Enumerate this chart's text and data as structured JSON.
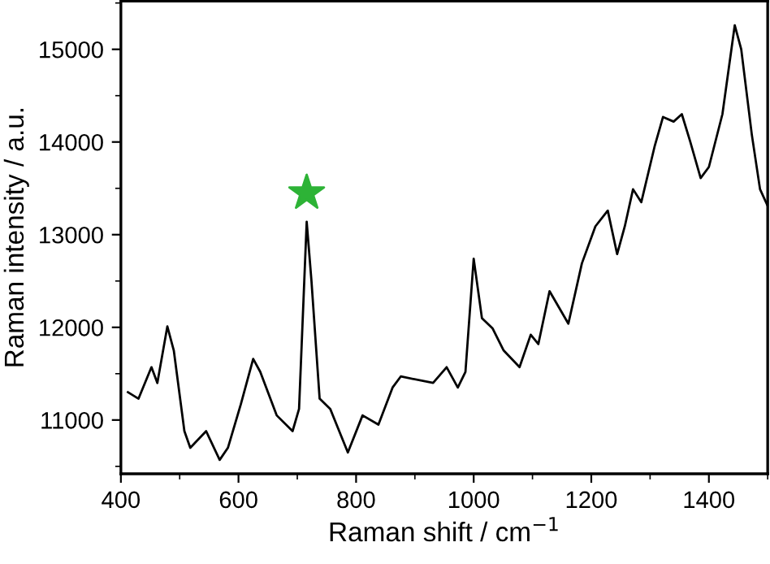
{
  "chart_data": {
    "type": "line",
    "xlabel": "Raman shift / cm$^{−1}$",
    "ylabel": "Raman intensity / a.u.",
    "xlim": [
      400,
      1500
    ],
    "ylim": [
      10420,
      15520
    ],
    "xticks": [
      400,
      600,
      800,
      1000,
      1200,
      1400
    ],
    "yticks": [
      11000,
      12000,
      13000,
      14000,
      15000
    ],
    "grid": false,
    "legend": false,
    "line_style": "solid",
    "series": [
      {
        "color": "#000000",
        "marker": "none",
        "x": [
          412,
          430,
          452,
          462,
          479,
          490,
          508,
          518,
          545,
          568,
          582,
          604,
          625,
          637,
          665,
          692,
          703,
          716,
          724,
          738,
          756,
          786,
          811,
          838,
          862,
          876,
          931,
          954,
          973,
          986,
          1000,
          1014,
          1032,
          1051,
          1078,
          1097,
          1110,
          1129,
          1161,
          1184,
          1207,
          1228,
          1244,
          1257,
          1271,
          1285,
          1308,
          1322,
          1340,
          1354,
          1368,
          1386,
          1400,
          1423,
          1444,
          1455,
          1473,
          1487,
          1500
        ],
        "values": [
          11300,
          11230,
          11570,
          11400,
          12010,
          11750,
          10880,
          10700,
          10880,
          10570,
          10700,
          11170,
          11660,
          11520,
          11050,
          10880,
          11120,
          13140,
          12510,
          11230,
          11120,
          10650,
          11050,
          10950,
          11350,
          11470,
          11400,
          11570,
          11350,
          11520,
          12740,
          12100,
          11990,
          11750,
          11570,
          11920,
          11820,
          12390,
          12040,
          12690,
          13090,
          13260,
          12790,
          13090,
          13490,
          13350,
          13960,
          14270,
          14220,
          14300,
          14010,
          13610,
          13730,
          14300,
          15260,
          15000,
          14080,
          13490,
          13310
        ]
      },
      {
        "type": "scatter",
        "color": "#2db336",
        "marker": "star",
        "x": [
          716
        ],
        "values": [
          13450
        ]
      }
    ]
  }
}
